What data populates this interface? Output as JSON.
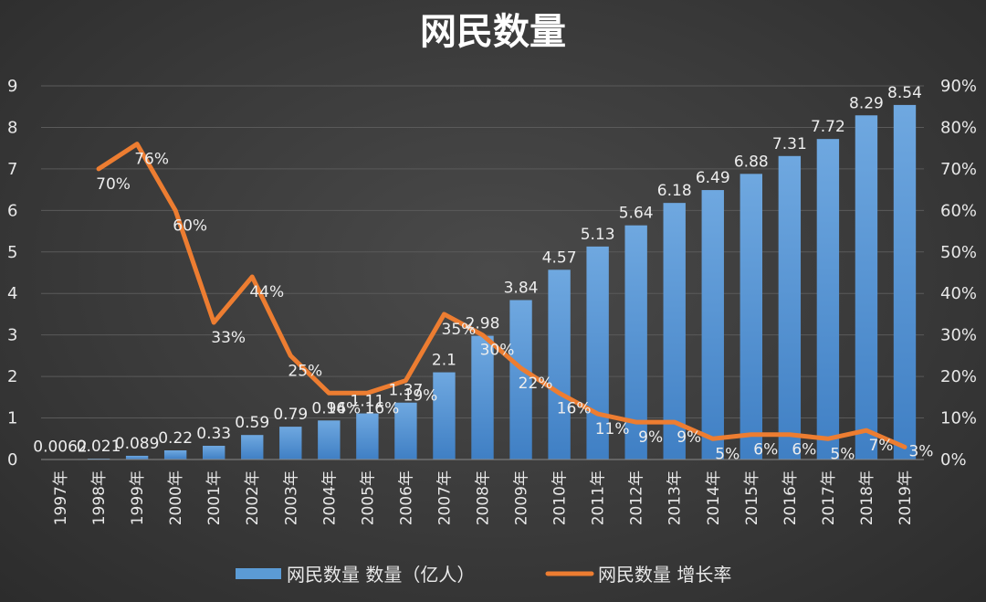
{
  "chart_data": {
    "type": "bar",
    "title": "网民数量",
    "categories": [
      "1997年",
      "1998年",
      "1999年",
      "2000年",
      "2001年",
      "2002年",
      "2003年",
      "2004年",
      "2005年",
      "2006年",
      "2007年",
      "2008年",
      "2009年",
      "2010年",
      "2011年",
      "2012年",
      "2013年",
      "2014年",
      "2015年",
      "2016年",
      "2017年",
      "2018年",
      "2019年"
    ],
    "series": [
      {
        "name": "网民数量 数量（亿人）",
        "type": "bar",
        "axis": "left",
        "color": "#5b9bd5",
        "values": [
          0.0062,
          0.021,
          0.089,
          0.22,
          0.33,
          0.59,
          0.79,
          0.94,
          1.11,
          1.37,
          2.1,
          2.98,
          3.84,
          4.57,
          5.13,
          5.64,
          6.18,
          6.49,
          6.88,
          7.31,
          7.72,
          8.29,
          8.54
        ],
        "labels": [
          "0.0062",
          "0.021",
          "0.089",
          "0.22",
          "0.33",
          "0.59",
          "0.79",
          "0.94",
          "1.11",
          "1.37",
          "2.1",
          "2.98",
          "3.84",
          "4.57",
          "5.13",
          "5.64",
          "6.18",
          "6.49",
          "6.88",
          "7.31",
          "7.72",
          "8.29",
          "8.54"
        ]
      },
      {
        "name": "网民数量 增长率",
        "type": "line",
        "axis": "right",
        "color": "#ed7d31",
        "values": [
          null,
          70,
          76,
          60,
          33,
          44,
          25,
          16,
          16,
          19,
          35,
          30,
          22,
          16,
          11,
          9,
          9,
          5,
          6,
          6,
          5,
          7,
          3
        ],
        "labels": [
          "",
          "70%",
          "76%",
          "60%",
          "33%",
          "44%",
          "25%",
          "16%",
          "16%",
          "19%",
          "35%",
          "30%",
          "22%",
          "16%",
          "11%",
          "9%",
          "9%",
          "5%",
          "6%",
          "6%",
          "5%",
          "7%",
          "3%"
        ]
      }
    ],
    "ylim_left": [
      0,
      9
    ],
    "yticks_left": [
      "0",
      "1",
      "2",
      "3",
      "4",
      "5",
      "6",
      "7",
      "8",
      "9"
    ],
    "ylim_right": [
      0,
      90
    ],
    "yticks_right": [
      "0%",
      "10%",
      "20%",
      "30%",
      "40%",
      "50%",
      "60%",
      "70%",
      "80%",
      "90%"
    ],
    "grid": true,
    "legend_position": "bottom"
  }
}
